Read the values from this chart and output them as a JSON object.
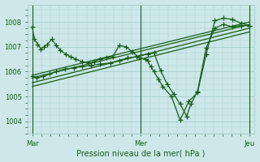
{
  "bg_color": "#cce8e8",
  "grid_color": "#a8cece",
  "line_color": "#1a5c1a",
  "xlabel": "Pression niveau de la mer( hPa )",
  "ylim": [
    1003.5,
    1008.7
  ],
  "yticks": [
    1004,
    1005,
    1006,
    1007,
    1008
  ],
  "xtick_labels": [
    "Mar",
    "Mer",
    "Jeu"
  ],
  "xtick_positions": [
    0.0,
    0.5,
    1.0
  ],
  "series1_x": [
    0.0,
    0.01,
    0.025,
    0.04,
    0.055,
    0.07,
    0.09,
    0.11,
    0.13,
    0.155,
    0.175,
    0.2,
    0.23,
    0.26,
    0.285,
    0.31,
    0.34,
    0.37,
    0.4,
    0.43,
    0.46,
    0.49,
    0.52,
    0.53,
    0.545,
    0.56,
    0.58,
    0.6,
    0.64,
    0.68,
    0.72,
    0.76,
    0.8,
    0.84,
    0.88,
    0.92,
    0.96,
    1.0
  ],
  "series1_y": [
    1007.8,
    1007.3,
    1007.1,
    1006.9,
    1007.0,
    1007.1,
    1007.3,
    1007.05,
    1006.85,
    1006.7,
    1006.6,
    1006.5,
    1006.4,
    1006.35,
    1006.4,
    1006.5,
    1006.55,
    1006.6,
    1007.05,
    1007.0,
    1006.8,
    1006.55,
    1006.5,
    1006.45,
    1006.2,
    1006.0,
    1005.7,
    1005.4,
    1005.0,
    1004.05,
    1004.8,
    1005.15,
    1006.7,
    1008.05,
    1008.15,
    1008.1,
    1007.95,
    1007.85
  ],
  "series2_x": [
    0.0,
    0.02,
    0.05,
    0.08,
    0.11,
    0.15,
    0.19,
    0.23,
    0.27,
    0.31,
    0.36,
    0.4,
    0.44,
    0.48,
    0.5,
    0.53,
    0.56,
    0.59,
    0.62,
    0.65,
    0.68,
    0.71,
    0.73,
    0.76,
    0.8,
    0.84,
    0.88,
    0.92,
    0.96,
    1.0
  ],
  "series2_y": [
    1005.8,
    1005.75,
    1005.8,
    1005.9,
    1006.0,
    1006.1,
    1006.15,
    1006.2,
    1006.25,
    1006.3,
    1006.35,
    1006.45,
    1006.55,
    1006.6,
    1006.65,
    1006.7,
    1006.75,
    1006.05,
    1005.5,
    1005.1,
    1004.7,
    1004.2,
    1004.7,
    1005.2,
    1006.95,
    1007.75,
    1007.9,
    1007.8,
    1007.85,
    1007.85
  ],
  "trend1_x": [
    0.0,
    1.0
  ],
  "trend1_y": [
    1005.85,
    1008.0
  ],
  "trend2_x": [
    0.0,
    1.0
  ],
  "trend2_y": [
    1005.75,
    1007.9
  ],
  "trend3_x": [
    0.0,
    1.0
  ],
  "trend3_y": [
    1005.55,
    1007.75
  ],
  "trend4_x": [
    0.0,
    1.0
  ],
  "trend4_y": [
    1005.4,
    1007.6
  ],
  "vline_positions": [
    0.0,
    0.5,
    1.0
  ]
}
